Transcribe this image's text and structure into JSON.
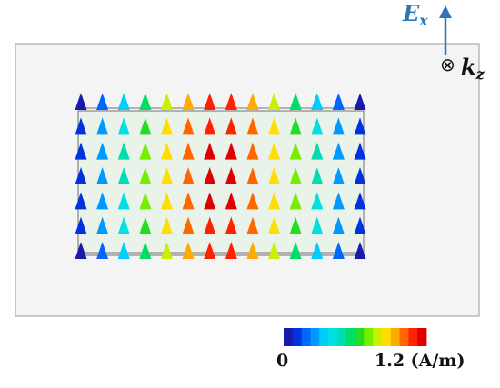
{
  "figure": {
    "field_magnitude_grid": [
      [
        0.0,
        0.18,
        0.32,
        0.52,
        0.78,
        0.96,
        1.12,
        1.12,
        0.96,
        0.78,
        0.52,
        0.32,
        0.18,
        0.0
      ],
      [
        0.05,
        0.22,
        0.4,
        0.66,
        0.84,
        1.02,
        1.14,
        1.14,
        1.02,
        0.84,
        0.66,
        0.4,
        0.22,
        0.05
      ],
      [
        0.05,
        0.24,
        0.44,
        0.7,
        0.86,
        1.04,
        1.16,
        1.16,
        1.04,
        0.86,
        0.7,
        0.44,
        0.24,
        0.05
      ],
      [
        0.05,
        0.25,
        0.44,
        0.7,
        0.88,
        1.06,
        1.18,
        1.18,
        1.06,
        0.88,
        0.7,
        0.44,
        0.25,
        0.05
      ],
      [
        0.05,
        0.24,
        0.42,
        0.68,
        0.86,
        1.04,
        1.16,
        1.16,
        1.04,
        0.86,
        0.68,
        0.42,
        0.24,
        0.05
      ],
      [
        0.04,
        0.22,
        0.4,
        0.64,
        0.84,
        1.02,
        1.14,
        1.14,
        1.02,
        0.84,
        0.64,
        0.4,
        0.22,
        0.04
      ],
      [
        0.0,
        0.18,
        0.34,
        0.56,
        0.8,
        0.98,
        1.12,
        1.12,
        0.98,
        0.8,
        0.56,
        0.34,
        0.18,
        0.0
      ]
    ],
    "colorbar": {
      "min_label": "0",
      "max_label": "1.2 (A/m)",
      "min": 0,
      "max": 1.2,
      "colors": [
        "#1a1aa8",
        "#0033dd",
        "#0066ff",
        "#0099ff",
        "#00ccff",
        "#00e0e0",
        "#00ddb0",
        "#00dd66",
        "#22dd22",
        "#77ee00",
        "#ccee00",
        "#ffdd00",
        "#ffaa00",
        "#ff6600",
        "#ff2200",
        "#dd0000"
      ]
    },
    "e_field_label": {
      "symbol": "E",
      "subscript": "x"
    },
    "k_label": {
      "symbol": "k",
      "subscript": "z"
    },
    "colors": {
      "e_arrow": "#2e75b6",
      "outer_box_fill": "#f4f4f4",
      "outer_box_stroke": "#9a9a9a",
      "inner_box_fill": "#e9f3ea",
      "inner_box_stroke": "#707070"
    }
  }
}
